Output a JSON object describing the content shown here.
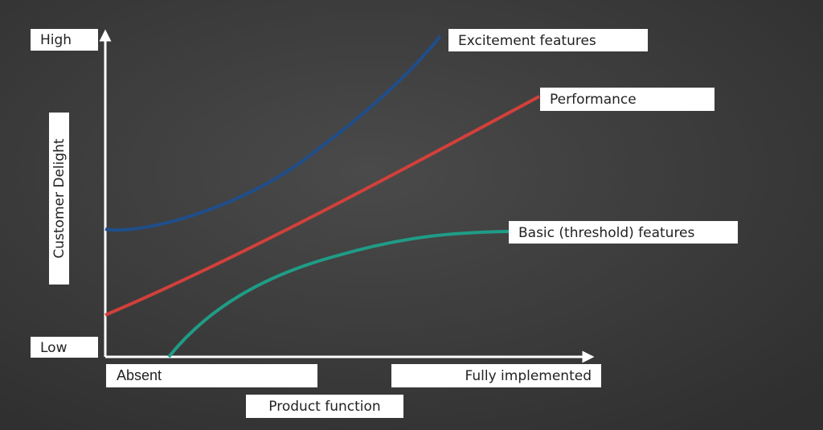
{
  "axes": {
    "y_high": "High",
    "y_low": "Low",
    "y_title": "Customer Delight",
    "x_start": "Absent",
    "x_end": "Fully implemented",
    "x_title": "Product function"
  },
  "curves": [
    {
      "label": "Excitement features"
    },
    {
      "label": "Performance"
    },
    {
      "label": "Basic (threshold) features"
    }
  ]
}
